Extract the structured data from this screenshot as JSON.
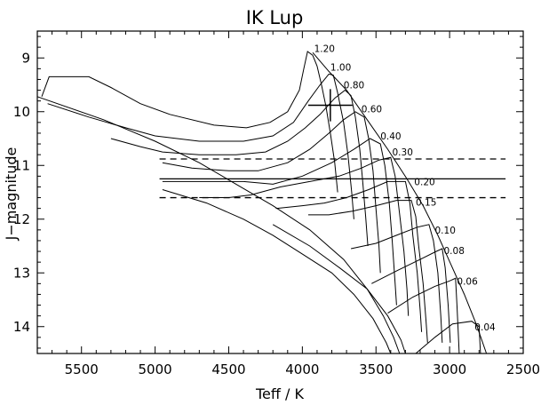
{
  "chart_data": {
    "type": "line",
    "title": "IK Lup",
    "xlabel": "Teff / K",
    "ylabel": "J−magnitude",
    "xlim": [
      5800,
      2500
    ],
    "ylim": [
      14.5,
      8.5
    ],
    "x_ticks": [
      5500,
      5000,
      4500,
      4000,
      3500,
      3000,
      2500
    ],
    "y_ticks": [
      9,
      10,
      11,
      12,
      13,
      14
    ],
    "grid": false,
    "legend": "none",
    "series": [
      {
        "label": "1.20",
        "label_at": [
          3920,
          8.82
        ],
        "points": [
          [
            5770,
            9.72
          ],
          [
            5720,
            9.35
          ],
          [
            5450,
            9.35
          ],
          [
            5300,
            9.55
          ],
          [
            5100,
            9.85
          ],
          [
            4900,
            10.05
          ],
          [
            4600,
            10.25
          ],
          [
            4380,
            10.3
          ],
          [
            4220,
            10.2
          ],
          [
            4100,
            10.0
          ],
          [
            4020,
            9.6
          ],
          [
            3990,
            9.2
          ],
          [
            3965,
            8.88
          ],
          [
            3930,
            8.95
          ],
          [
            3900,
            9.15
          ],
          [
            3870,
            9.5
          ],
          [
            3840,
            9.9
          ],
          [
            3810,
            10.4
          ],
          [
            3780,
            10.95
          ],
          [
            3760,
            11.5
          ]
        ]
      },
      {
        "label": "1.00",
        "label_at": [
          3810,
          9.17
        ],
        "points": [
          [
            5730,
            9.85
          ],
          [
            5450,
            10.1
          ],
          [
            5200,
            10.3
          ],
          [
            5000,
            10.45
          ],
          [
            4700,
            10.55
          ],
          [
            4400,
            10.55
          ],
          [
            4200,
            10.45
          ],
          [
            4060,
            10.2
          ],
          [
            3960,
            9.8
          ],
          [
            3880,
            9.5
          ],
          [
            3820,
            9.3
          ],
          [
            3790,
            9.32
          ],
          [
            3760,
            9.65
          ],
          [
            3720,
            10.2
          ],
          [
            3690,
            10.8
          ],
          [
            3665,
            11.5
          ],
          [
            3650,
            12.0
          ]
        ]
      },
      {
        "label": "0.80",
        "label_at": [
          3720,
          9.5
        ],
        "points": [
          [
            5300,
            10.5
          ],
          [
            5100,
            10.65
          ],
          [
            4950,
            10.75
          ],
          [
            4700,
            10.8
          ],
          [
            4450,
            10.8
          ],
          [
            4250,
            10.75
          ],
          [
            4100,
            10.55
          ],
          [
            3980,
            10.3
          ],
          [
            3880,
            10.05
          ],
          [
            3780,
            9.75
          ],
          [
            3710,
            9.6
          ],
          [
            3670,
            9.7
          ],
          [
            3640,
            10.1
          ],
          [
            3610,
            10.7
          ],
          [
            3590,
            11.3
          ],
          [
            3570,
            11.95
          ],
          [
            3555,
            12.5
          ]
        ]
      },
      {
        "label": "0.60",
        "label_at": [
          3600,
          9.95
        ],
        "points": [
          [
            4950,
            10.95
          ],
          [
            4750,
            11.05
          ],
          [
            4500,
            11.1
          ],
          [
            4300,
            11.1
          ],
          [
            4100,
            10.95
          ],
          [
            3950,
            10.7
          ],
          [
            3820,
            10.4
          ],
          [
            3720,
            10.15
          ],
          [
            3640,
            10.0
          ],
          [
            3580,
            10.1
          ],
          [
            3550,
            10.5
          ],
          [
            3520,
            11.1
          ],
          [
            3500,
            11.8
          ],
          [
            3480,
            12.5
          ],
          [
            3470,
            13.0
          ]
        ]
      },
      {
        "label": "0.40",
        "label_at": [
          3470,
          10.45
        ],
        "points": [
          [
            4950,
            11.3
          ],
          [
            4700,
            11.3
          ],
          [
            4400,
            11.3
          ],
          [
            4200,
            11.35
          ],
          [
            4000,
            11.2
          ],
          [
            3800,
            10.95
          ],
          [
            3650,
            10.7
          ],
          [
            3540,
            10.5
          ],
          [
            3470,
            10.6
          ],
          [
            3440,
            11.0
          ],
          [
            3410,
            11.7
          ],
          [
            3390,
            12.4
          ],
          [
            3370,
            13.2
          ],
          [
            3360,
            13.6
          ]
        ]
      },
      {
        "label": "0.30",
        "label_at": [
          3390,
          10.75
        ],
        "points": [
          [
            4700,
            11.6
          ],
          [
            4500,
            11.6
          ],
          [
            4350,
            11.55
          ],
          [
            4150,
            11.4
          ],
          [
            3950,
            11.3
          ],
          [
            3750,
            11.2
          ],
          [
            3600,
            11.05
          ],
          [
            3480,
            10.9
          ],
          [
            3400,
            10.85
          ],
          [
            3370,
            11.2
          ],
          [
            3340,
            11.9
          ],
          [
            3310,
            12.6
          ],
          [
            3290,
            13.3
          ],
          [
            3280,
            13.8
          ]
        ]
      },
      {
        "label": "0.20",
        "label_at": [
          3240,
          11.3
        ],
        "points": [
          [
            4180,
            11.8
          ],
          [
            4000,
            11.75
          ],
          [
            3850,
            11.7
          ],
          [
            3700,
            11.6
          ],
          [
            3550,
            11.45
          ],
          [
            3420,
            11.3
          ],
          [
            3300,
            11.3
          ],
          [
            3270,
            11.7
          ],
          [
            3250,
            12.3
          ],
          [
            3220,
            13.0
          ],
          [
            3200,
            13.7
          ],
          [
            3190,
            14.1
          ]
        ]
      },
      {
        "label": "0.15",
        "label_at": [
          3230,
          11.68
        ],
        "points": [
          [
            3960,
            11.92
          ],
          [
            3820,
            11.92
          ],
          [
            3660,
            11.85
          ],
          [
            3500,
            11.75
          ],
          [
            3360,
            11.65
          ],
          [
            3260,
            11.65
          ],
          [
            3230,
            11.95
          ],
          [
            3210,
            12.5
          ],
          [
            3180,
            13.2
          ],
          [
            3160,
            13.9
          ],
          [
            3150,
            14.3
          ]
        ]
      },
      {
        "label": "0.10",
        "label_at": [
          3100,
          12.2
        ],
        "points": [
          [
            3670,
            12.55
          ],
          [
            3500,
            12.45
          ],
          [
            3360,
            12.3
          ],
          [
            3220,
            12.15
          ],
          [
            3140,
            12.1
          ],
          [
            3110,
            12.4
          ],
          [
            3080,
            13.0
          ],
          [
            3060,
            13.8
          ],
          [
            3050,
            14.3
          ]
        ]
      },
      {
        "label": "0.08",
        "label_at": [
          3040,
          12.58
        ],
        "points": [
          [
            3530,
            13.2
          ],
          [
            3350,
            12.95
          ],
          [
            3200,
            12.75
          ],
          [
            3090,
            12.6
          ],
          [
            3050,
            12.55
          ],
          [
            3030,
            12.9
          ],
          [
            3010,
            13.6
          ],
          [
            2995,
            14.3
          ]
        ]
      },
      {
        "label": "0.06",
        "label_at": [
          2950,
          13.15
        ],
        "points": [
          [
            3420,
            13.75
          ],
          [
            3250,
            13.45
          ],
          [
            3100,
            13.25
          ],
          [
            3000,
            13.15
          ],
          [
            2960,
            13.1
          ],
          [
            2950,
            13.6
          ],
          [
            2940,
            14.2
          ],
          [
            2935,
            14.5
          ]
        ]
      },
      {
        "label": "0.04",
        "label_at": [
          2830,
          14.0
        ],
        "points": [
          [
            3230,
            14.5
          ],
          [
            3100,
            14.2
          ],
          [
            2980,
            13.95
          ],
          [
            2850,
            13.9
          ],
          [
            2800,
            14.0
          ],
          [
            2790,
            14.5
          ]
        ]
      },
      {
        "label": "",
        "label_at": null,
        "points": [
          [
            5800,
            9.72
          ],
          [
            5350,
            10.15
          ],
          [
            5000,
            10.55
          ],
          [
            4700,
            10.95
          ],
          [
            4450,
            11.35
          ],
          [
            4200,
            11.75
          ],
          [
            3950,
            12.2
          ],
          [
            3720,
            12.75
          ],
          [
            3560,
            13.3
          ],
          [
            3450,
            13.8
          ],
          [
            3380,
            14.2
          ],
          [
            3340,
            14.5
          ]
        ]
      },
      {
        "label": "",
        "label_at": null,
        "points": [
          [
            3930,
            8.9
          ],
          [
            3820,
            9.25
          ],
          [
            3700,
            9.6
          ],
          [
            3560,
            10.15
          ],
          [
            3420,
            10.7
          ],
          [
            3290,
            11.25
          ],
          [
            3180,
            11.75
          ],
          [
            3080,
            12.3
          ],
          [
            2990,
            12.85
          ],
          [
            2900,
            13.4
          ],
          [
            2820,
            13.95
          ],
          [
            2750,
            14.5
          ]
        ]
      },
      {
        "label": "",
        "label_at": null,
        "points": [
          [
            4950,
            11.45
          ],
          [
            4650,
            11.7
          ],
          [
            4400,
            12.0
          ],
          [
            4200,
            12.3
          ],
          [
            4000,
            12.65
          ],
          [
            3800,
            13.0
          ],
          [
            3650,
            13.4
          ],
          [
            3520,
            13.85
          ],
          [
            3430,
            14.3
          ],
          [
            3400,
            14.5
          ]
        ]
      },
      {
        "label": "",
        "label_at": null,
        "points": [
          [
            4200,
            12.1
          ],
          [
            3950,
            12.5
          ],
          [
            3750,
            12.9
          ],
          [
            3560,
            13.3
          ],
          [
            3420,
            13.8
          ],
          [
            3330,
            14.25
          ],
          [
            3300,
            14.5
          ]
        ]
      }
    ],
    "reference_lines": [
      {
        "y": 11.25,
        "style": "solid",
        "x_from": 4970,
        "x_to": 2620
      },
      {
        "y": 10.88,
        "style": "dashed",
        "x_from": 4970,
        "x_to": 2620
      },
      {
        "y": 11.6,
        "style": "dashed",
        "x_from": 4970,
        "x_to": 2620
      }
    ],
    "marker": {
      "x": 3810,
      "y": 9.88,
      "xerr": 150,
      "yerr": 0.3
    }
  }
}
